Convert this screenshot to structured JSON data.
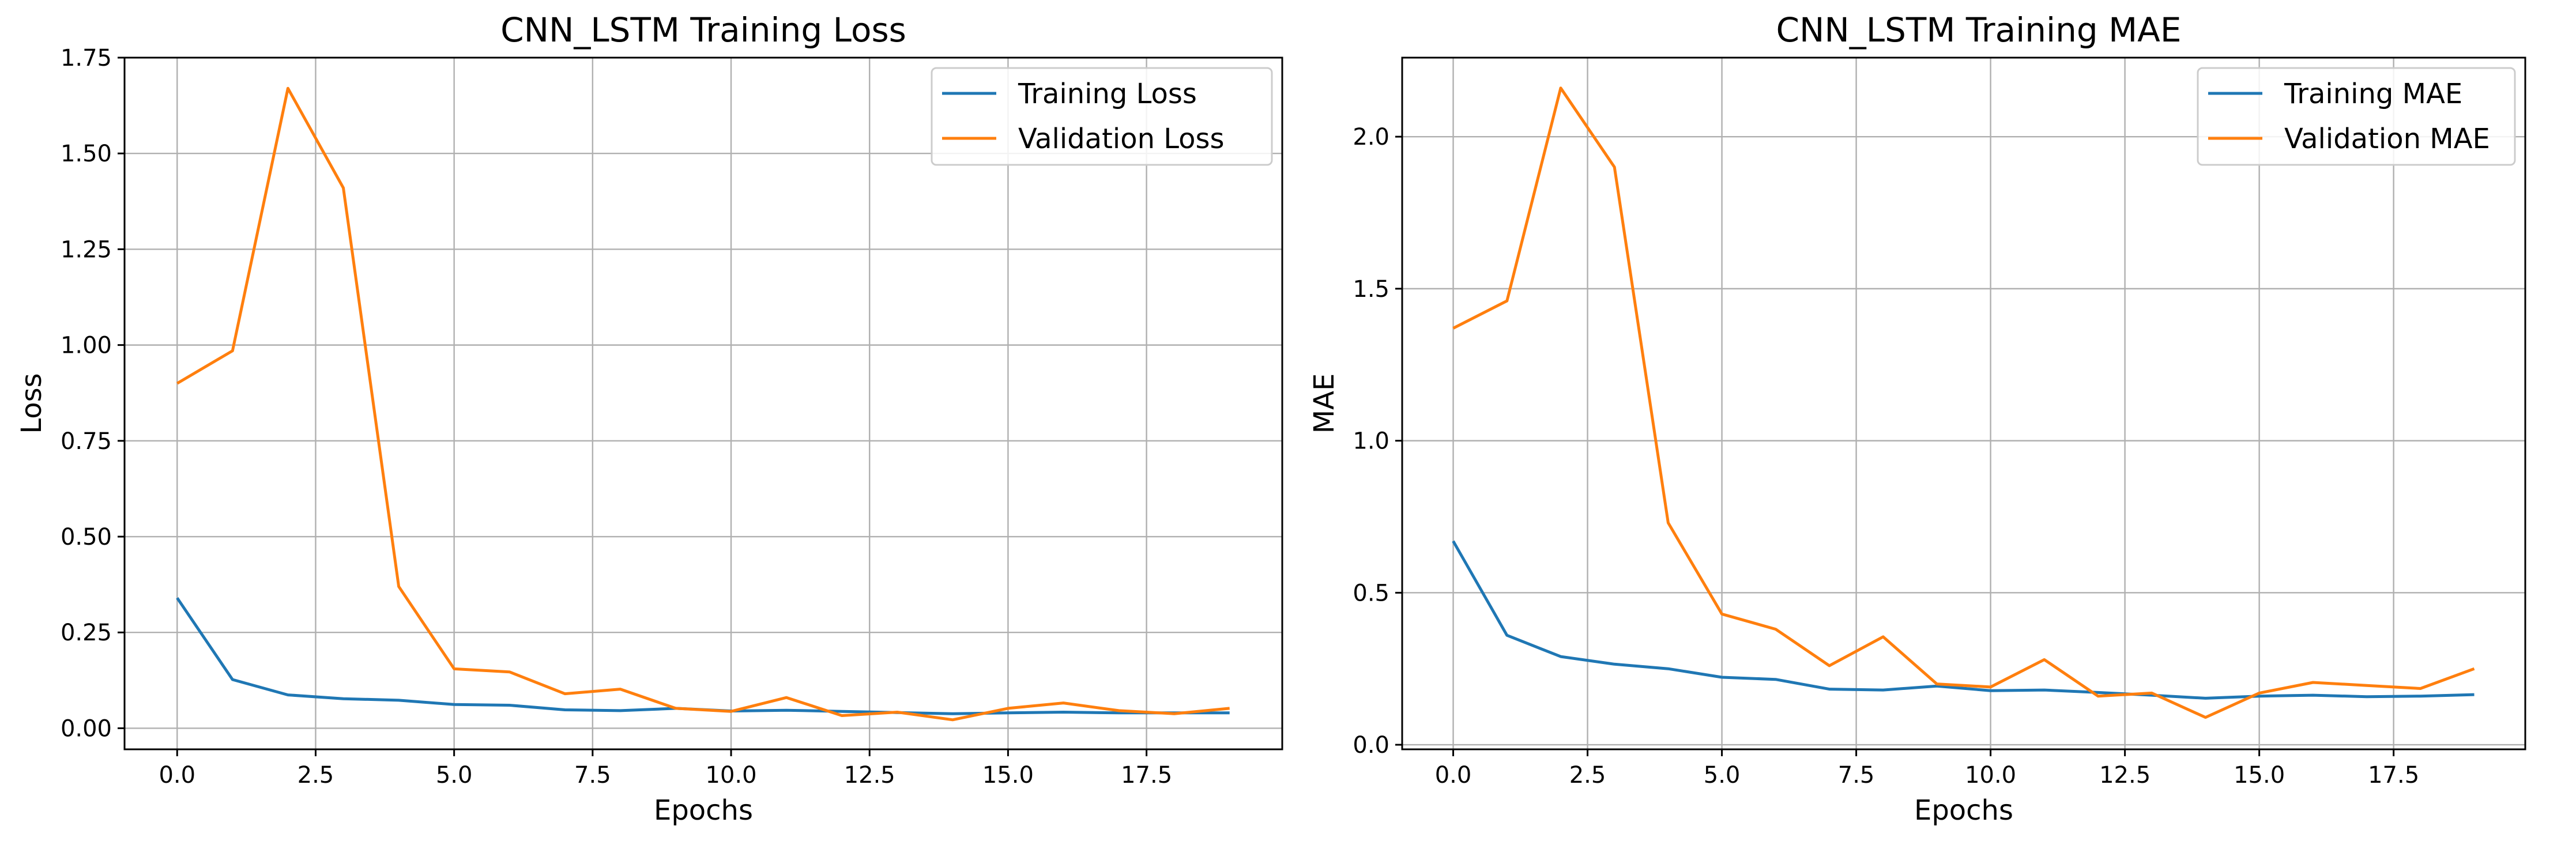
{
  "chart_data": [
    {
      "type": "line",
      "title": "CNN_LSTM Training Loss",
      "xlabel": "Epochs",
      "ylabel": "Loss",
      "x": [
        0,
        1,
        2,
        3,
        4,
        5,
        6,
        7,
        8,
        9,
        10,
        11,
        12,
        13,
        14,
        15,
        16,
        17,
        18,
        19
      ],
      "xlim": [
        -0.95,
        19.95
      ],
      "ylim": [
        -0.055,
        1.75
      ],
      "xticks": [
        0.0,
        2.5,
        5.0,
        7.5,
        10.0,
        12.5,
        15.0,
        17.5
      ],
      "xtick_labels": [
        "0.0",
        "2.5",
        "5.0",
        "7.5",
        "10.0",
        "12.5",
        "15.0",
        "17.5"
      ],
      "yticks": [
        0.0,
        0.25,
        0.5,
        0.75,
        1.0,
        1.25,
        1.5,
        1.75
      ],
      "ytick_labels": [
        "0.00",
        "0.25",
        "0.50",
        "0.75",
        "1.00",
        "1.25",
        "1.50",
        "1.75"
      ],
      "grid": true,
      "legend_position": "top-right",
      "series": [
        {
          "name": "Training Loss",
          "color": "#1f77b4",
          "values": [
            0.34,
            0.127,
            0.087,
            0.077,
            0.073,
            0.062,
            0.06,
            0.048,
            0.046,
            0.052,
            0.045,
            0.047,
            0.044,
            0.041,
            0.038,
            0.04,
            0.042,
            0.04,
            0.04,
            0.04
          ]
        },
        {
          "name": "Validation Loss",
          "color": "#ff7f0e",
          "values": [
            0.9,
            0.985,
            1.67,
            1.41,
            0.37,
            0.155,
            0.147,
            0.09,
            0.102,
            0.052,
            0.044,
            0.08,
            0.033,
            0.042,
            0.022,
            0.052,
            0.066,
            0.046,
            0.038,
            0.052
          ]
        }
      ]
    },
    {
      "type": "line",
      "title": "CNN_LSTM Training MAE",
      "xlabel": "Epochs",
      "ylabel": "MAE",
      "x": [
        0,
        1,
        2,
        3,
        4,
        5,
        6,
        7,
        8,
        9,
        10,
        11,
        12,
        13,
        14,
        15,
        16,
        17,
        18,
        19
      ],
      "xlim": [
        -0.95,
        19.95
      ],
      "ylim": [
        -0.015,
        2.26
      ],
      "xticks": [
        0.0,
        2.5,
        5.0,
        7.5,
        10.0,
        12.5,
        15.0,
        17.5
      ],
      "xtick_labels": [
        "0.0",
        "2.5",
        "5.0",
        "7.5",
        "10.0",
        "12.5",
        "15.0",
        "17.5"
      ],
      "yticks": [
        0.0,
        0.5,
        1.0,
        1.5,
        2.0
      ],
      "ytick_labels": [
        "0.0",
        "0.5",
        "1.0",
        "1.5",
        "2.0"
      ],
      "grid": true,
      "legend_position": "top-right",
      "series": [
        {
          "name": "Training MAE",
          "color": "#1f77b4",
          "values": [
            0.67,
            0.36,
            0.29,
            0.265,
            0.25,
            0.222,
            0.215,
            0.183,
            0.18,
            0.193,
            0.178,
            0.18,
            0.172,
            0.163,
            0.153,
            0.16,
            0.163,
            0.158,
            0.16,
            0.165
          ]
        },
        {
          "name": "Validation MAE",
          "color": "#ff7f0e",
          "values": [
            1.37,
            1.46,
            2.16,
            1.9,
            0.73,
            0.43,
            0.38,
            0.26,
            0.355,
            0.2,
            0.19,
            0.28,
            0.16,
            0.17,
            0.09,
            0.17,
            0.205,
            0.195,
            0.185,
            0.25
          ]
        }
      ]
    }
  ]
}
